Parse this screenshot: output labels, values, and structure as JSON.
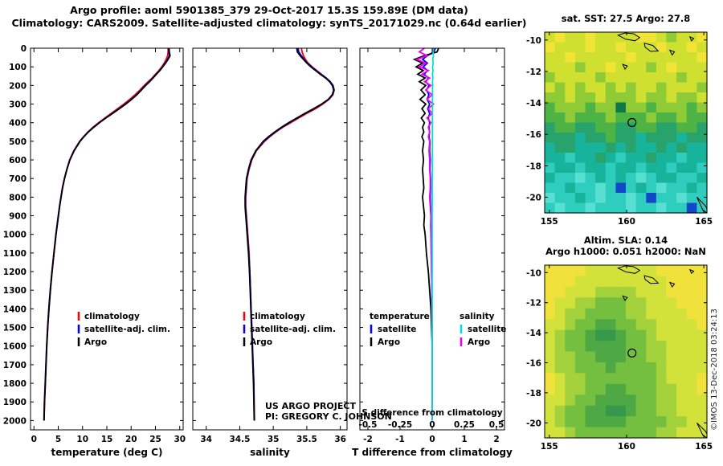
{
  "figure": {
    "title_line1": "Argo profile: aoml 5901385_379 29-Oct-2017 15.3S 159.89E (DM data)",
    "title_line2": "Climatology: CARS2009. Satellite-adjusted climatology: synTS_20171029.nc (0.64d earlier)",
    "watermark": "©IMOS 13-Dec-2018 03:24:13",
    "project_line1": "US ARGO PROJECT",
    "project_line2": "PI: GREGORY C. JOHNSON"
  },
  "colors": {
    "climatology": "#ff0000",
    "satellite": "#0000ee",
    "argo": "#000000",
    "satellite_s": "#00dede",
    "argo_s": "#f000f0",
    "axis": "#000000",
    "background": "#ffffff"
  },
  "chart_data": {
    "depth_m": [
      0,
      20,
      40,
      60,
      80,
      100,
      120,
      140,
      160,
      180,
      200,
      225,
      250,
      275,
      300,
      325,
      350,
      375,
      400,
      425,
      450,
      475,
      500,
      550,
      600,
      650,
      700,
      750,
      800,
      850,
      900,
      950,
      1000,
      1100,
      1200,
      1300,
      1400,
      1500,
      1600,
      1700,
      1800,
      1900,
      2000
    ],
    "y_ticks": [
      0,
      100,
      200,
      300,
      400,
      500,
      600,
      700,
      800,
      900,
      1000,
      1100,
      1200,
      1300,
      1400,
      1500,
      1600,
      1700,
      1800,
      1900,
      2000
    ],
    "temperature": {
      "type": "line",
      "xlabel": "temperature (deg C)",
      "xlim": [
        -0.7,
        30.7
      ],
      "x_ticks": [
        0,
        5,
        10,
        15,
        20,
        25,
        30
      ],
      "x_tick_labels": [
        "0",
        "5",
        "10",
        "15",
        "20",
        "25",
        "30"
      ],
      "legend": [
        {
          "label": "climatology",
          "color_key": "climatology"
        },
        {
          "label": "satellite-adj. clim.",
          "color_key": "satellite"
        },
        {
          "label": "Argo",
          "color_key": "argo"
        }
      ],
      "series": [
        {
          "name": "climatology",
          "color_key": "climatology",
          "values": [
            27.6,
            27.6,
            27.5,
            27.2,
            26.8,
            26.3,
            25.7,
            25.0,
            24.3,
            23.5,
            22.7,
            21.8,
            20.8,
            19.7,
            18.5,
            17.2,
            15.9,
            14.6,
            13.3,
            12.1,
            11.1,
            10.2,
            9.4,
            8.2,
            7.35,
            6.75,
            6.25,
            5.85,
            5.55,
            5.25,
            5.0,
            4.75,
            4.5,
            4.1,
            3.7,
            3.35,
            3.05,
            2.8,
            2.6,
            2.45,
            2.3,
            2.15,
            2.05
          ]
        },
        {
          "name": "satellite-adj. clim.",
          "color_key": "satellite",
          "values": [
            27.7,
            27.75,
            27.85,
            27.5,
            27.0,
            26.45,
            25.85,
            25.15,
            24.45,
            23.7,
            22.9,
            22.0,
            21.1,
            20.0,
            18.8,
            17.5,
            16.1,
            14.75,
            13.45,
            12.25,
            11.15,
            10.25,
            9.45,
            8.25,
            7.38,
            6.78,
            6.27,
            5.87,
            5.57,
            5.27,
            5.02,
            4.77,
            4.52,
            4.12,
            3.72,
            3.37,
            3.07,
            2.82,
            2.62,
            2.47,
            2.32,
            2.17,
            2.07
          ]
        },
        {
          "name": "Argo",
          "color_key": "argo",
          "values": [
            27.8,
            27.85,
            28.0,
            27.6,
            27.1,
            26.5,
            25.9,
            25.2,
            24.5,
            23.8,
            23.0,
            22.1,
            21.2,
            20.1,
            18.9,
            17.6,
            16.2,
            14.8,
            13.5,
            12.3,
            11.2,
            10.3,
            9.5,
            8.3,
            7.4,
            6.8,
            6.3,
            5.9,
            5.6,
            5.3,
            5.05,
            4.8,
            4.55,
            4.15,
            3.75,
            3.4,
            3.1,
            2.85,
            2.65,
            2.5,
            2.35,
            2.2,
            2.1
          ]
        }
      ]
    },
    "salinity": {
      "type": "line",
      "xlabel": "salinity",
      "xlim": [
        33.8,
        36.1
      ],
      "x_ticks": [
        34,
        34.5,
        35,
        35.5,
        36
      ],
      "x_tick_labels": [
        "34",
        "34.5",
        "35",
        "35.5",
        "36"
      ],
      "legend": [
        {
          "label": "climatology",
          "color_key": "climatology"
        },
        {
          "label": "satellite-adj. clim.",
          "color_key": "satellite"
        },
        {
          "label": "Argo",
          "color_key": "argo"
        }
      ],
      "series": [
        {
          "name": "climatology",
          "color_key": "climatology",
          "values": [
            35.42,
            35.43,
            35.45,
            35.48,
            35.52,
            35.58,
            35.65,
            35.72,
            35.79,
            35.85,
            35.89,
            35.91,
            35.89,
            35.83,
            35.74,
            35.63,
            35.5,
            35.38,
            35.26,
            35.14,
            35.04,
            34.95,
            34.87,
            34.75,
            34.68,
            34.64,
            34.61,
            34.6,
            34.59,
            34.59,
            34.6,
            34.61,
            34.62,
            34.64,
            34.65,
            34.66,
            34.67,
            34.68,
            34.69,
            34.7,
            34.71,
            34.715,
            34.72
          ]
        },
        {
          "name": "satellite-adj. clim.",
          "color_key": "satellite",
          "values": [
            35.37,
            35.38,
            35.42,
            35.46,
            35.51,
            35.57,
            35.64,
            35.71,
            35.79,
            35.85,
            35.89,
            35.905,
            35.885,
            35.825,
            35.725,
            35.61,
            35.48,
            35.36,
            35.24,
            35.13,
            35.03,
            34.94,
            34.86,
            34.745,
            34.675,
            34.635,
            34.605,
            34.595,
            34.585,
            34.585,
            34.595,
            34.605,
            34.615,
            34.635,
            34.65,
            34.66,
            34.67,
            34.68,
            34.69,
            34.7,
            34.71,
            34.713,
            34.718
          ]
        },
        {
          "name": "Argo",
          "color_key": "argo",
          "values": [
            35.35,
            35.36,
            35.4,
            35.45,
            35.5,
            35.56,
            35.63,
            35.7,
            35.78,
            35.84,
            35.88,
            35.9,
            35.88,
            35.82,
            35.72,
            35.6,
            35.47,
            35.35,
            35.23,
            35.12,
            35.02,
            34.93,
            34.85,
            34.74,
            34.67,
            34.63,
            34.6,
            34.59,
            34.58,
            34.58,
            34.59,
            34.6,
            34.61,
            34.63,
            34.645,
            34.655,
            34.665,
            34.675,
            34.685,
            34.695,
            34.705,
            34.71,
            34.715
          ]
        }
      ]
    },
    "difference": {
      "type": "line",
      "xlabel": "T difference from climatology",
      "xlim": [
        -2.25,
        2.25
      ],
      "x_ticks": [
        -2,
        -1,
        0,
        1,
        2
      ],
      "x_tick_labels": [
        "-2",
        "-1",
        "0",
        "1",
        "2"
      ],
      "s_axis_label": "S difference from climatology",
      "s_ticks": [
        -0.5,
        -0.25,
        0,
        0.25,
        0.5
      ],
      "s_tick_labels": [
        "-0.5",
        "-0.25",
        "0",
        "0.25",
        "0.5"
      ],
      "legend_columns": [
        {
          "header": "temperature",
          "entries": [
            {
              "label": "satellite",
              "color_key": "satellite"
            },
            {
              "label": "Argo",
              "color_key": "argo"
            }
          ]
        },
        {
          "header": "salinity",
          "entries": [
            {
              "label": "satellite",
              "color_key": "satellite_s"
            },
            {
              "label": "Argo",
              "color_key": "argo_s"
            }
          ]
        }
      ],
      "series": [
        {
          "name": "satellite T",
          "color_key": "satellite",
          "scale": "T",
          "values": [
            0.1,
            0.05,
            -0.15,
            -0.3,
            -0.15,
            -0.28,
            -0.14,
            -0.25,
            -0.12,
            -0.2,
            -0.1,
            -0.18,
            -0.1,
            -0.16,
            -0.08,
            -0.14,
            -0.08,
            -0.12,
            -0.08,
            -0.1,
            -0.08,
            -0.1,
            -0.07,
            -0.08,
            -0.06,
            -0.07,
            -0.05,
            -0.05,
            -0.06,
            -0.05,
            -0.04,
            -0.04,
            -0.03,
            -0.02,
            -0.02,
            -0.01,
            -0.01,
            0,
            0,
            0,
            0,
            0,
            0
          ]
        },
        {
          "name": "Argo T",
          "color_key": "argo",
          "scale": "T",
          "values": [
            0.2,
            0.15,
            -0.25,
            -0.55,
            -0.3,
            -0.5,
            -0.28,
            -0.45,
            -0.22,
            -0.4,
            -0.2,
            -0.35,
            -0.22,
            -0.38,
            -0.2,
            -0.32,
            -0.22,
            -0.34,
            -0.24,
            -0.3,
            -0.26,
            -0.32,
            -0.26,
            -0.3,
            -0.27,
            -0.3,
            -0.28,
            -0.26,
            -0.3,
            -0.27,
            -0.24,
            -0.26,
            -0.22,
            -0.18,
            -0.12,
            -0.08,
            -0.04,
            -0.02,
            0,
            0,
            0,
            0,
            0
          ]
        },
        {
          "name": "Argo S",
          "color_key": "argo_s",
          "scale": "S",
          "values": [
            -0.06,
            -0.1,
            -0.04,
            -0.12,
            -0.05,
            -0.1,
            -0.03,
            -0.08,
            -0.02,
            -0.06,
            -0.01,
            -0.05,
            0.0,
            -0.04,
            0.01,
            -0.03,
            0.0,
            -0.04,
            -0.01,
            -0.03,
            -0.02,
            -0.03,
            -0.02,
            -0.025,
            -0.02,
            -0.02,
            -0.015,
            -0.015,
            -0.02,
            -0.015,
            -0.01,
            -0.012,
            -0.01,
            -0.008,
            -0.005,
            -0.003,
            -0.002,
            -0.001,
            0,
            0,
            0,
            0,
            0
          ]
        },
        {
          "name": "satellite S",
          "color_key": "satellite_s",
          "scale": "S",
          "values": [
            0.008,
            0.006,
            0.01,
            0.004,
            0.008,
            0.003,
            0.006,
            0.002,
            0.005,
            0.002,
            0.004,
            0.002,
            0.003,
            0.001,
            0.003,
            0.001,
            0.002,
            0.001,
            0.002,
            0.001,
            0.002,
            0.001,
            0.001,
            0.001,
            0.001,
            0.001,
            0.001,
            0.0,
            0.001,
            0.0,
            0.0,
            0.0,
            0.0,
            0.0,
            0.0,
            0.0,
            0.0,
            0.0,
            0.0,
            0.0,
            0.0,
            0.0,
            0.0
          ]
        }
      ]
    },
    "sst_map": {
      "type": "heatmap",
      "title": "sat. SST: 27.5 Argo: 27.8",
      "lonlim": [
        154.7,
        165.2
      ],
      "latlim": [
        -9.5,
        -21.0
      ],
      "lon_ticks": [
        155,
        160,
        165
      ],
      "lat_ticks": [
        -10,
        -12,
        -14,
        -16,
        -18,
        -20
      ],
      "marker": {
        "lon": 160.35,
        "lat": -15.25
      },
      "palette": {
        "a": "#f2e434",
        "b": "#cfe030",
        "c": "#8ecb37",
        "d": "#4db344",
        "e": "#27a36b",
        "f": "#17b39b",
        "g": "#2ecdbd",
        "h": "#57dfd2",
        "i": "#1248c8",
        "j": "#0b7a46"
      },
      "grid": [
        "babbabbbbaabcbba",
        "abbbabbabbbabbab",
        "bbabbbbbabbbbbba",
        "bbbcbbabbbcbabbb",
        "cbbbbcbbbbbbbcbb",
        "bcbcbbcbcbbcbbbc",
        "ccbccbcccbccbccb",
        "dcccdccjccdcccdc",
        "ddcdddcdddcddcdd",
        "eddeeddeeddeedde",
        "eeefeedeefeeefee",
        "feefffefeffefeff",
        "ffgffefgffeffgff",
        "gffgffgffgffgffg",
        "fgghgfgfghgffggf",
        "ggfgghgigfghggfg",
        "hggfghgghgigghgg",
        "ghgghggghgghggig"
      ]
    },
    "sla_map": {
      "type": "heatmap",
      "title": "Altim. SLA: 0.14",
      "title2": "Argo h1000: 0.051 h2000: NaN",
      "lonlim": [
        154.7,
        165.2
      ],
      "latlim": [
        -9.5,
        -21.0
      ],
      "lon_ticks": [
        155,
        160,
        165
      ],
      "lat_ticks": [
        -10,
        -12,
        -14,
        -16,
        -18,
        -20
      ],
      "marker": {
        "lon": 160.35,
        "lat": -15.35
      },
      "palette": {
        "a": "#f0e23a",
        "b": "#d3e23a",
        "c": "#a4d23c",
        "d": "#74bf40",
        "e": "#4ea945",
        "f": "#35984a"
      },
      "grid": [
        "aaaabbbbbbbaaaaa",
        "aaabbbbbbbbbaaaa",
        "aabbbccccbbbaaaa",
        "abbccdddccbbbaaa",
        "abccddddccbbbbaa",
        "bbcddeeddccbbbba",
        "bcddeffeddcbbbbb",
        "bcddeeeeddccbbbb",
        "bccddeeeddccbbbb",
        "bccdddeddddcbbbb",
        "abccdddddddcbbba",
        "abccddeedddccbba",
        "bbcddeeeeddccbbb",
        "bcddeeffeddccbbb",
        "bcddeeeeddddccbb",
        "bbcddddddddccbbb"
      ]
    }
  },
  "coastlines": [
    [
      [
        159.45,
        -9.7
      ],
      [
        159.9,
        -9.55
      ],
      [
        160.45,
        -9.6
      ],
      [
        160.85,
        -9.85
      ],
      [
        160.55,
        -10.05
      ],
      [
        159.95,
        -9.95
      ],
      [
        159.45,
        -9.7
      ]
    ],
    [
      [
        161.15,
        -10.2
      ],
      [
        161.7,
        -10.35
      ],
      [
        162.05,
        -10.7
      ],
      [
        161.55,
        -10.72
      ],
      [
        161.2,
        -10.45
      ],
      [
        161.15,
        -10.2
      ]
    ],
    [
      [
        162.8,
        -10.65
      ],
      [
        163.1,
        -10.75
      ],
      [
        162.95,
        -10.95
      ],
      [
        162.8,
        -10.65
      ]
    ],
    [
      [
        159.75,
        -11.55
      ],
      [
        160.05,
        -11.65
      ],
      [
        159.9,
        -11.85
      ],
      [
        159.75,
        -11.55
      ]
    ],
    [
      [
        164.1,
        -9.8
      ],
      [
        164.35,
        -9.9
      ],
      [
        164.2,
        -10.05
      ],
      [
        164.1,
        -9.8
      ]
    ],
    [
      [
        164.55,
        -20.0
      ],
      [
        165.1,
        -20.55
      ],
      [
        165.4,
        -21.1
      ],
      [
        164.95,
        -20.85
      ],
      [
        164.55,
        -20.0
      ]
    ]
  ]
}
